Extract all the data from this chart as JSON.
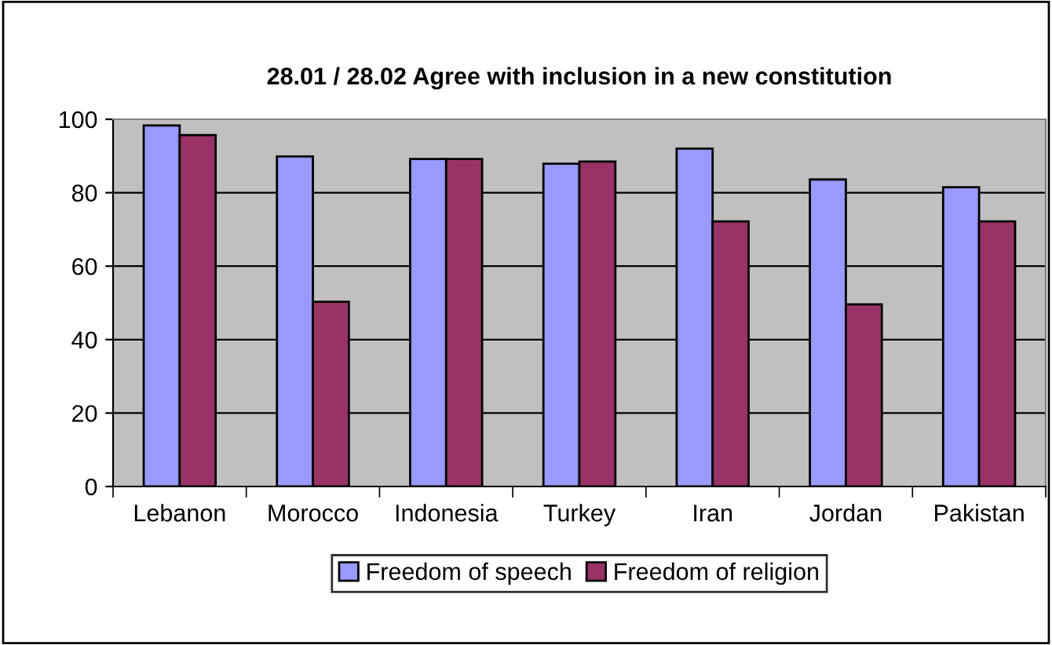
{
  "chart_data": {
    "type": "bar",
    "title": "28.01 / 28.02 Agree with inclusion in a new constitution",
    "categories": [
      "Lebanon",
      "Morocco",
      "Indonesia",
      "Turkey",
      "Iran",
      "Jordan",
      "Pakistan"
    ],
    "series": [
      {
        "name": "Freedom of speech",
        "color": "#9999ff",
        "values": [
          98.3,
          89.9,
          89.2,
          87.9,
          92.0,
          83.6,
          81.5
        ]
      },
      {
        "name": "Freedom of religion",
        "color": "#993366",
        "values": [
          95.7,
          50.3,
          89.2,
          88.5,
          72.2,
          49.6,
          72.2
        ]
      }
    ],
    "ylim": [
      0,
      100
    ],
    "yticks": [
      0,
      20,
      40,
      60,
      80,
      100
    ],
    "grid": "y",
    "legend": "bottom"
  }
}
